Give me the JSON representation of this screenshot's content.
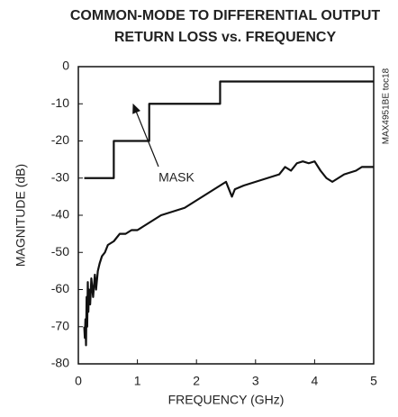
{
  "chart_data": {
    "type": "line",
    "title": [
      "COMMON-MODE TO DIFFERENTIAL OUTPUT",
      "RETURN LOSS vs. FREQUENCY"
    ],
    "xlabel": "FREQUENCY (GHz)",
    "ylabel": "MAGNITUDE (dB)",
    "side_note": "MAX4951BE toc18",
    "annotation": "MASK",
    "xlim": [
      0,
      5
    ],
    "xticks": [
      0,
      1,
      2,
      3,
      4,
      5
    ],
    "ylim": [
      -80,
      0
    ],
    "yticks": [
      0,
      -10,
      -20,
      -30,
      -40,
      -50,
      -60,
      -70,
      -80
    ],
    "grid": false,
    "series": [
      {
        "color": "#111111",
        "x": [
          0.1,
          0.6,
          0.6,
          1.2,
          1.2,
          2.4,
          2.4,
          5
        ],
        "values": [
          -30,
          -30,
          -20,
          -20,
          -10,
          -10,
          -4,
          -4
        ]
      },
      {
        "color": "#111111",
        "x": [
          0.1,
          0.11,
          0.12,
          0.13,
          0.14,
          0.15,
          0.16,
          0.17,
          0.18,
          0.2,
          0.22,
          0.25,
          0.28,
          0.3,
          0.33,
          0.36,
          0.4,
          0.45,
          0.5,
          0.6,
          0.7,
          0.8,
          0.9,
          1.0,
          1.1,
          1.2,
          1.4,
          1.6,
          1.8,
          2.0,
          2.2,
          2.4,
          2.5,
          2.55,
          2.6,
          2.65,
          2.8,
          3.0,
          3.2,
          3.4,
          3.5,
          3.6,
          3.7,
          3.8,
          3.9,
          4.0,
          4.1,
          4.2,
          4.3,
          4.4,
          4.5,
          4.7,
          4.8,
          5.0
        ],
        "values": [
          -70,
          -73,
          -68,
          -75,
          -62,
          -70,
          -58,
          -66,
          -60,
          -64,
          -57,
          -62,
          -56,
          -60,
          -55,
          -53,
          -51,
          -50,
          -48,
          -47,
          -45,
          -45,
          -44,
          -44,
          -43,
          -42,
          -40,
          -39,
          -38,
          -36,
          -34,
          -32,
          -31,
          -33,
          -35,
          -33,
          -32,
          -31,
          -30,
          -29,
          -27,
          -28,
          -26,
          -25.5,
          -26,
          -25.5,
          -28,
          -30,
          -31,
          -30,
          -29,
          -28,
          -27,
          -27
        ]
      }
    ]
  }
}
